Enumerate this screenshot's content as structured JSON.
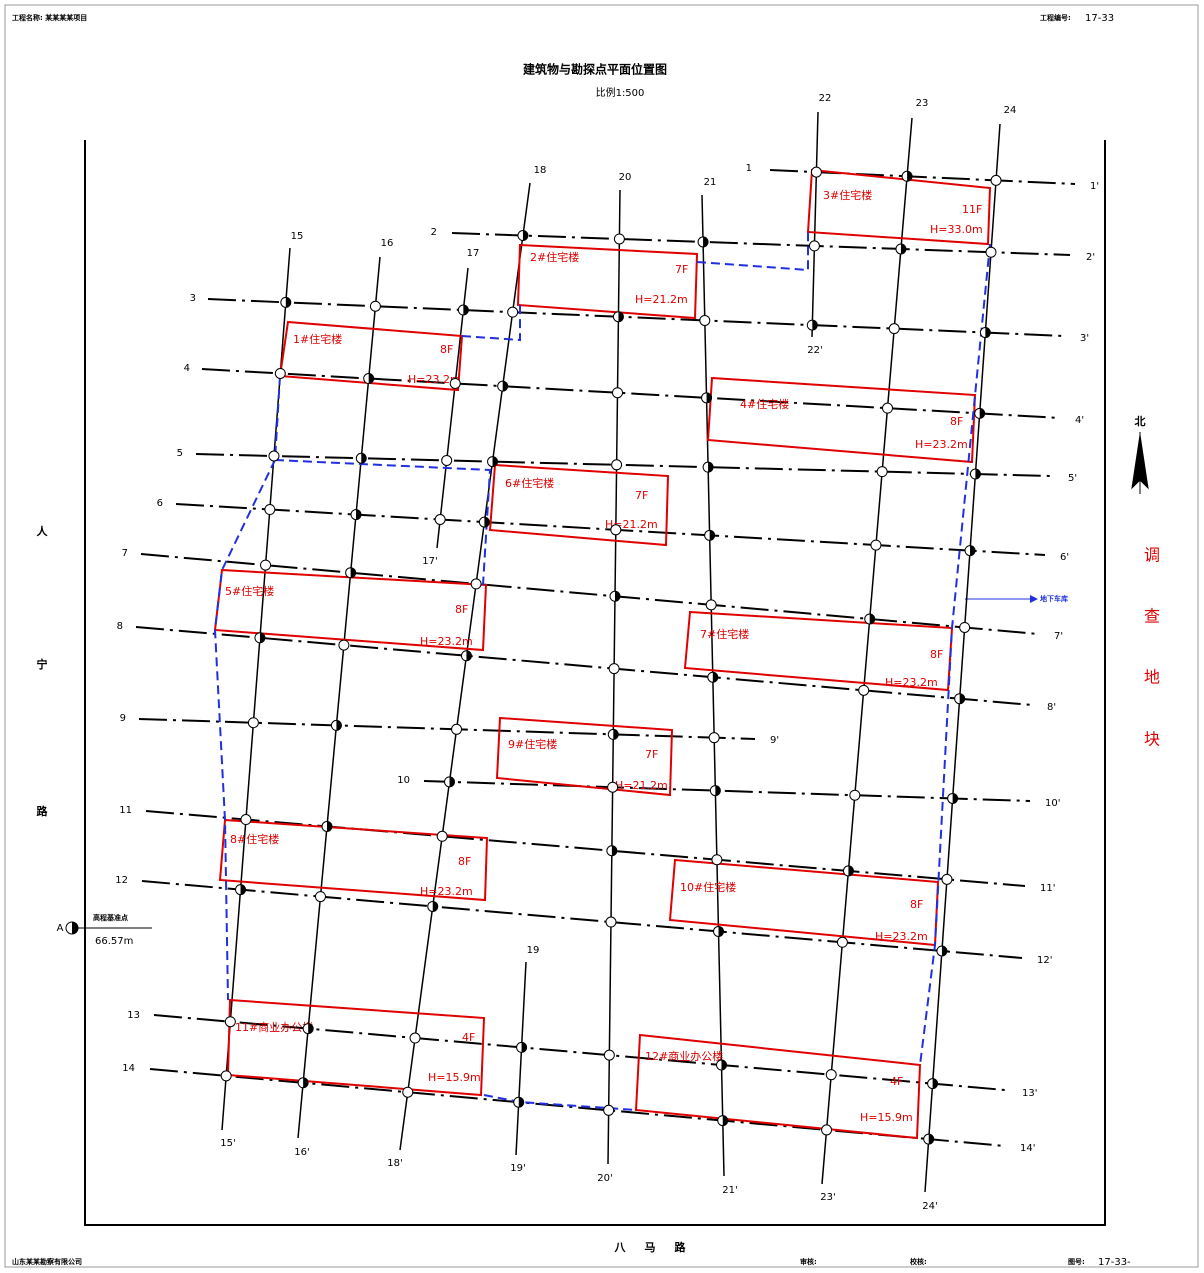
{
  "header": {
    "project_label": "工程名称: 某某某某项目",
    "number_label": "工程编号:",
    "number": "17-33"
  },
  "title": "建筑物与勘探点平面位置图",
  "scale": "比例1:500",
  "row_lines": [
    {
      "start": "1",
      "end": "1'"
    },
    {
      "start": "2",
      "end": "2'"
    },
    {
      "start": "3",
      "end": "3'"
    },
    {
      "start": "4",
      "end": "4'"
    },
    {
      "start": "5",
      "end": "5'"
    },
    {
      "start": "6",
      "end": "6'"
    },
    {
      "start": "7",
      "end": "7'"
    },
    {
      "start": "8",
      "end": "8'"
    },
    {
      "start": "9",
      "end": "9'"
    },
    {
      "start": "10",
      "end": "10'"
    },
    {
      "start": "11",
      "end": "11'"
    },
    {
      "start": "12",
      "end": "12'"
    },
    {
      "start": "13",
      "end": "13'"
    },
    {
      "start": "14",
      "end": "14'"
    }
  ],
  "column_lines": [
    {
      "start": "15",
      "end": "15'"
    },
    {
      "start": "16",
      "end": "16'"
    },
    {
      "start": "17",
      "end": "17'"
    },
    {
      "start": "18",
      "end": "18'"
    },
    {
      "start": "19",
      "end": "19'"
    },
    {
      "start": "20",
      "end": "20'"
    },
    {
      "start": "21",
      "end": "21'"
    },
    {
      "start": "22",
      "end": "22'"
    },
    {
      "start": "23",
      "end": "23'"
    },
    {
      "start": "24",
      "end": "24'"
    }
  ],
  "buildings": [
    {
      "name": "1#住宅楼",
      "floors": "8F",
      "height": "H=23.2m"
    },
    {
      "name": "2#住宅楼",
      "floors": "7F",
      "height": "H=21.2m"
    },
    {
      "name": "3#住宅楼",
      "floors": "11F",
      "height": "H=33.0m"
    },
    {
      "name": "4#住宅楼",
      "floors": "8F",
      "height": "H=23.2m"
    },
    {
      "name": "5#住宅楼",
      "floors": "8F",
      "height": "H=23.2m"
    },
    {
      "name": "6#住宅楼",
      "floors": "7F",
      "height": "H=21.2m"
    },
    {
      "name": "7#住宅楼",
      "floors": "8F",
      "height": "H=23.2m"
    },
    {
      "name": "8#住宅楼",
      "floors": "8F",
      "height": "H=23.2m"
    },
    {
      "name": "9#住宅楼",
      "floors": "7F",
      "height": "H=21.2m"
    },
    {
      "name": "10#住宅楼",
      "floors": "8F",
      "height": "H=23.2m"
    },
    {
      "name": "11#商业办公楼",
      "floors": "4F",
      "height": "H=15.9m"
    },
    {
      "name": "12#商业办公楼",
      "floors": "4F",
      "height": "H=15.9m"
    }
  ],
  "benchmark": {
    "marker": "A",
    "label": "高程基准点",
    "value": "66.57m"
  },
  "north": "北",
  "garage": "地下车库",
  "site_label": [
    "调",
    "查",
    "地",
    "块"
  ],
  "roads": {
    "left": [
      "人",
      "宁",
      "路"
    ],
    "bottom": [
      "八",
      "马",
      "路"
    ]
  },
  "footer": {
    "company": "山东某某勘察有限公司",
    "reviewer": "审核:",
    "checker": "校核:",
    "drawing_label": "图号:",
    "drawing_number": "17-33-"
  }
}
